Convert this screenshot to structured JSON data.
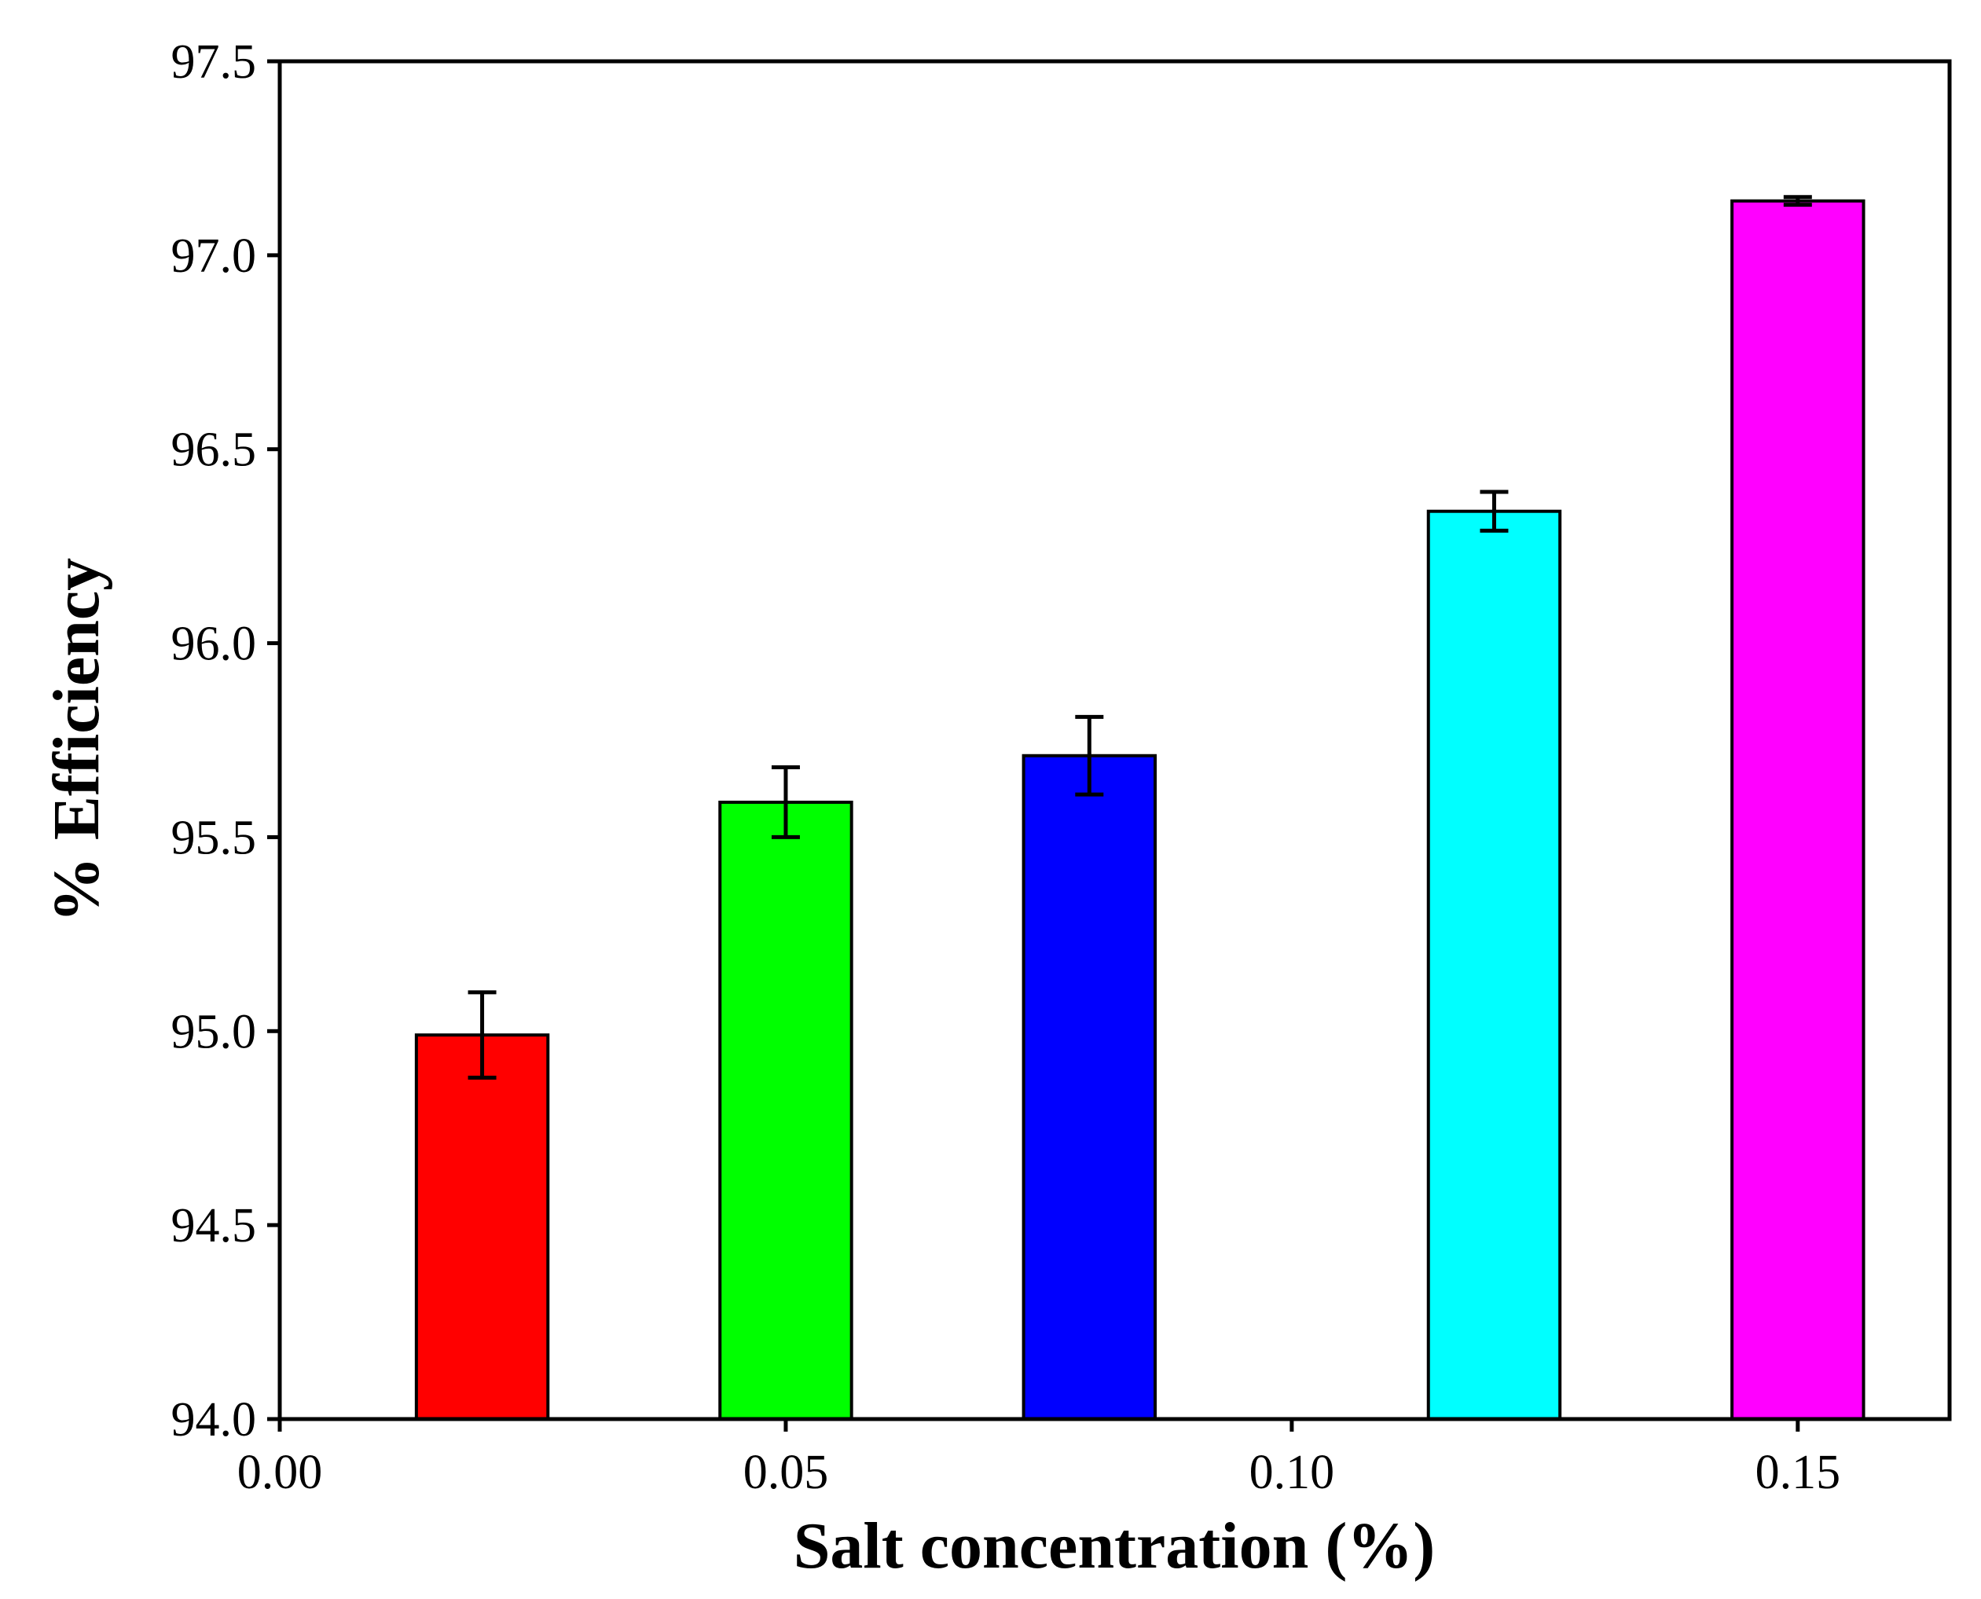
{
  "chart_data": {
    "type": "bar",
    "title": "",
    "xlabel": "Salt concentration (%)",
    "ylabel": "% Efficiency",
    "xlim": [
      0.0,
      0.165
    ],
    "ylim": [
      94.0,
      97.5
    ],
    "x_ticks": [
      "0.00",
      "0.05",
      "0.10",
      "0.15"
    ],
    "x_tick_values": [
      0.0,
      0.05,
      0.1,
      0.15
    ],
    "y_ticks": [
      "94.0",
      "94.5",
      "95.0",
      "95.5",
      "96.0",
      "96.5",
      "97.0",
      "97.5"
    ],
    "y_tick_values": [
      94.0,
      94.5,
      95.0,
      95.5,
      96.0,
      96.5,
      97.0,
      97.5
    ],
    "grid": false,
    "legend": "none",
    "bar_width": 0.013,
    "bars": [
      {
        "x": 0.02,
        "value": 94.99,
        "error": 0.11,
        "color": "#ff0000"
      },
      {
        "x": 0.05,
        "value": 95.59,
        "error": 0.09,
        "color": "#00ff00"
      },
      {
        "x": 0.08,
        "value": 95.71,
        "error": 0.1,
        "color": "#0000ff"
      },
      {
        "x": 0.12,
        "value": 96.34,
        "error": 0.05,
        "color": "#00ffff"
      },
      {
        "x": 0.15,
        "value": 97.14,
        "error": 0.01,
        "color": "#ff00ff"
      }
    ]
  }
}
